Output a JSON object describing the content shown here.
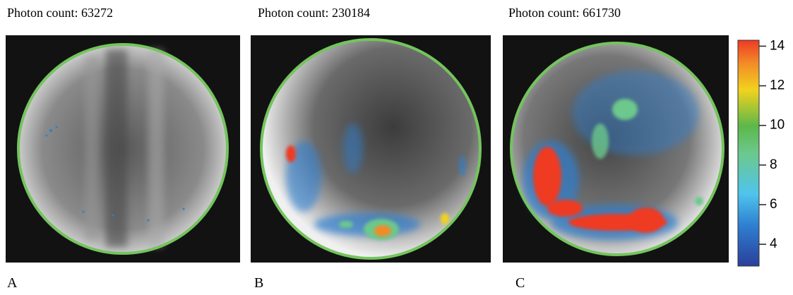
{
  "panels": [
    {
      "title": "Photon count: 63272",
      "label": "A"
    },
    {
      "title": "Photon count: 230184",
      "label": "B"
    },
    {
      "title": "Photon count: 661730",
      "label": "C"
    }
  ],
  "colorbar": {
    "lim": [
      2.9,
      14.3
    ],
    "ticks": [
      4,
      6,
      8,
      10,
      12,
      14
    ]
  }
}
